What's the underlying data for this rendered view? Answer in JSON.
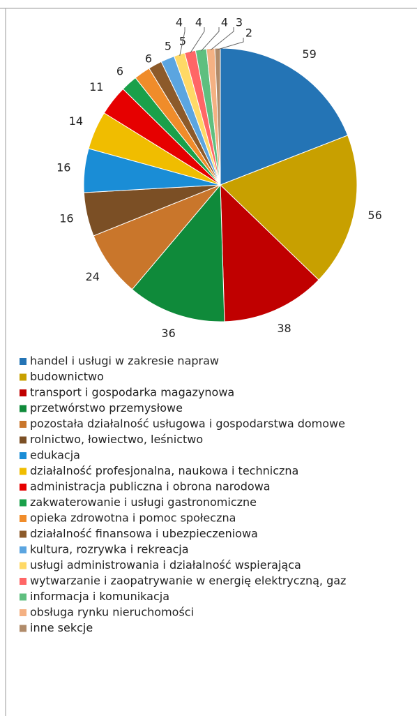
{
  "chart_data": {
    "type": "pie",
    "categories": [
      "handel i usługi w zakresie napraw",
      "budownictwo",
      "transport i gospodarka magazynowa",
      "przetwórstwo przemysłowe",
      "pozostała działalność usługowa i gospodarstwa domowe",
      "rolnictwo, łowiectwo, leśnictwo",
      "edukacja",
      "działalność profesjonalna, naukowa i techniczna",
      "administracja publiczna i obrona narodowa",
      "zakwaterowanie i usługi gastronomiczne",
      "opieka zdrowotna i pomoc społeczna",
      "działalność finansowa i ubezpieczeniowa",
      "kultura, rozrywka i rekreacja",
      "usługi administrowania i działalność wspierająca",
      "wytwarzanie i zaopatrywanie w energię elektryczną, gaz",
      "informacja i komunikacja",
      "obsługa rynku nieruchomości",
      "inne sekcje"
    ],
    "values": [
      59,
      56,
      38,
      36,
      24,
      16,
      16,
      14,
      11,
      6,
      6,
      5,
      5,
      4,
      4,
      4,
      3,
      2
    ],
    "colors": [
      "#2474b5",
      "#c8a000",
      "#c00000",
      "#0f8a3a",
      "#c9762b",
      "#7b4f25",
      "#1a8dd6",
      "#f0bd00",
      "#e60000",
      "#1aa04a",
      "#f08c2a",
      "#8c5a2a",
      "#5ba5e0",
      "#ffd966",
      "#ff6666",
      "#5fbf7f",
      "#f4b183",
      "#b08b6a"
    ],
    "legend": "bottom"
  }
}
